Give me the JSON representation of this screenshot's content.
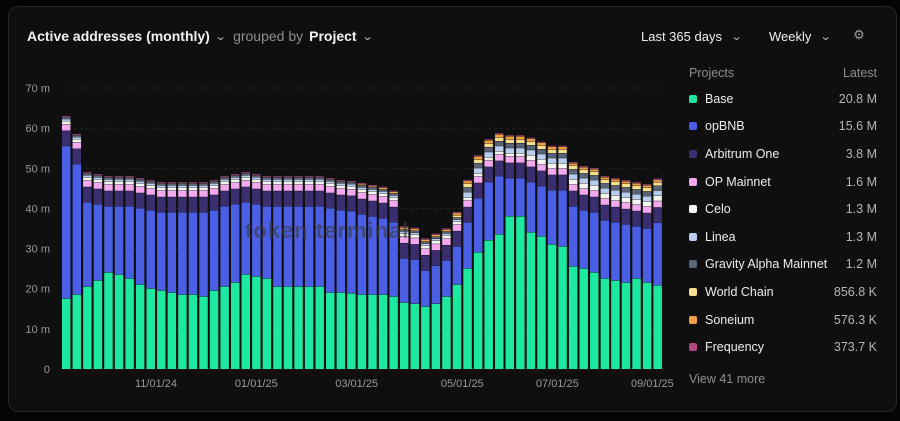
{
  "header": {
    "metric": "Active addresses (monthly)",
    "grouped_by": "grouped by",
    "group": "Project"
  },
  "controls": {
    "range": "Last 365 days",
    "interval": "Weekly"
  },
  "legend": {
    "title": "Projects",
    "latest_label": "Latest",
    "view_more": "View 41 more",
    "items": [
      {
        "name": "Base",
        "value": "20.8 M",
        "color": "#1de8a0"
      },
      {
        "name": "opBNB",
        "value": "15.6 M",
        "color": "#4a5ee6"
      },
      {
        "name": "Arbitrum One",
        "value": "3.8 M",
        "color": "#3a2e6e"
      },
      {
        "name": "OP Mainnet",
        "value": "1.6 M",
        "color": "#f4a8f0"
      },
      {
        "name": "Celo",
        "value": "1.3 M",
        "color": "#f5f5f0"
      },
      {
        "name": "Linea",
        "value": "1.3 M",
        "color": "#b8cdf0"
      },
      {
        "name": "Gravity Alpha Mainnet",
        "value": "1.2 M",
        "color": "#5a6478"
      },
      {
        "name": "World Chain",
        "value": "856.8 K",
        "color": "#f6df8c"
      },
      {
        "name": "Soneium",
        "value": "576.3 K",
        "color": "#f0a040"
      },
      {
        "name": "Frequency",
        "value": "373.7 K",
        "color": "#b04880"
      }
    ]
  },
  "watermark": "token terminal",
  "chart_data": {
    "type": "bar",
    "stacked": true,
    "ylim": [
      0,
      70
    ],
    "yticks": [
      "0",
      "10 m",
      "20 m",
      "30 m",
      "40 m",
      "50 m",
      "60 m",
      "70 m"
    ],
    "xtick_labels": [
      "11/01/24",
      "01/01/25",
      "03/01/25",
      "05/01/25",
      "07/01/25",
      "09/01/25"
    ],
    "xtick_positions": [
      8.5,
      18,
      27.5,
      37.5,
      46.5,
      55.5
    ],
    "series": [
      {
        "name": "Base",
        "values": [
          17.5,
          18.5,
          20.5,
          22,
          24,
          23.5,
          22.5,
          21,
          20,
          19.5,
          19,
          18.5,
          18.5,
          18,
          19.5,
          20.5,
          21.5,
          23.5,
          23,
          22.5,
          20.5,
          20.5,
          20.5,
          20.5,
          20.5,
          19,
          19,
          18.8,
          18.5,
          18.5,
          18.5,
          18,
          16.5,
          16.2,
          15.5,
          16.2,
          18,
          21,
          25,
          29,
          32,
          33.5,
          38,
          38,
          34,
          33,
          31,
          30.5,
          25.5,
          25,
          24,
          22.5,
          22,
          21.5,
          22.5,
          21.5,
          20.8
        ]
      },
      {
        "name": "opBNB",
        "values": [
          38,
          32.5,
          21,
          19,
          16.5,
          17,
          18,
          19,
          19.5,
          19.5,
          20,
          20.5,
          20.5,
          21,
          20,
          20,
          19.5,
          18,
          18,
          18,
          20,
          20,
          20,
          20,
          20,
          21,
          20.5,
          20.5,
          20,
          19.5,
          19,
          18.5,
          11,
          11,
          9,
          9.5,
          9,
          9.5,
          11.5,
          13.5,
          14.5,
          14.5,
          9.5,
          9.5,
          12.5,
          12.5,
          13.5,
          14,
          15,
          14.5,
          15,
          14.5,
          14.5,
          14.5,
          13,
          13.5,
          15.6
        ]
      },
      {
        "name": "Arbitrum One",
        "values": [
          3.8,
          3.8,
          3.8,
          3.8,
          3.8,
          3.8,
          3.8,
          3.8,
          3.8,
          3.8,
          3.8,
          3.8,
          3.8,
          3.8,
          3.8,
          3.8,
          3.8,
          3.8,
          3.8,
          3.8,
          3.8,
          3.8,
          3.8,
          3.8,
          3.8,
          3.8,
          3.8,
          3.8,
          3.8,
          3.8,
          3.8,
          3.8,
          3.8,
          3.8,
          3.8,
          3.8,
          3.8,
          3.8,
          3.8,
          3.8,
          3.8,
          3.8,
          3.8,
          3.8,
          3.8,
          3.8,
          3.8,
          3.8,
          3.8,
          3.8,
          3.8,
          3.8,
          3.8,
          3.8,
          3.8,
          3.8,
          3.8
        ]
      },
      {
        "name": "OP Mainnet",
        "values": [
          1.6,
          1.6,
          1.6,
          1.6,
          1.6,
          1.6,
          1.6,
          1.6,
          1.6,
          1.6,
          1.6,
          1.6,
          1.6,
          1.6,
          1.6,
          1.6,
          1.6,
          1.6,
          1.6,
          1.6,
          1.6,
          1.6,
          1.6,
          1.6,
          1.6,
          1.6,
          1.6,
          1.6,
          1.6,
          1.6,
          1.6,
          1.6,
          1.6,
          1.6,
          1.6,
          1.6,
          1.6,
          1.6,
          1.6,
          1.6,
          1.6,
          1.6,
          1.6,
          1.6,
          1.6,
          1.6,
          1.6,
          1.6,
          1.6,
          1.6,
          1.6,
          1.6,
          1.6,
          1.6,
          1.6,
          1.6,
          1.6
        ]
      },
      {
        "name": "Celo",
        "values": [
          0.8,
          0.8,
          0.8,
          0.8,
          0.8,
          0.8,
          0.8,
          0.8,
          0.8,
          0.8,
          0.8,
          0.8,
          0.8,
          0.8,
          0.8,
          0.8,
          0.8,
          0.8,
          0.8,
          0.8,
          0.8,
          0.8,
          0.8,
          0.8,
          0.8,
          0.8,
          0.8,
          0.8,
          0.8,
          0.8,
          0.8,
          0.8,
          0.8,
          0.8,
          0.8,
          0.8,
          0.8,
          0.8,
          0.8,
          0.8,
          0.8,
          0.8,
          0.8,
          0.8,
          1.3,
          1.3,
          1.3,
          1.3,
          1.3,
          1.3,
          1.3,
          1.3,
          1.3,
          1.3,
          1.3,
          1.3,
          1.3
        ]
      },
      {
        "name": "Linea",
        "values": [
          0.5,
          0.5,
          0.5,
          0.5,
          0.5,
          0.5,
          0.5,
          0.5,
          0.5,
          0.5,
          0.5,
          0.5,
          0.5,
          0.5,
          0.5,
          0.5,
          0.5,
          0.5,
          0.5,
          0.5,
          0.5,
          0.5,
          0.5,
          0.5,
          0.5,
          0.5,
          0.5,
          0.5,
          0.5,
          0.5,
          0.5,
          0.5,
          0.5,
          0.5,
          0.5,
          0.5,
          0.5,
          0.5,
          1.3,
          1.3,
          1.3,
          1.3,
          1.3,
          1.3,
          1.3,
          1.3,
          1.3,
          1.3,
          1.3,
          1.3,
          1.3,
          1.3,
          1.3,
          1.3,
          1.3,
          1.3,
          1.3
        ]
      },
      {
        "name": "Gravity Alpha Mainnet",
        "values": [
          0.5,
          0.5,
          0.5,
          0.5,
          0.5,
          0.5,
          0.5,
          0.5,
          0.5,
          0.5,
          0.5,
          0.5,
          0.5,
          0.5,
          0.5,
          0.5,
          0.5,
          0.5,
          0.5,
          0.5,
          0.5,
          0.5,
          0.5,
          0.5,
          0.5,
          0.5,
          0.5,
          0.5,
          0.5,
          0.5,
          0.5,
          0.5,
          0.5,
          0.5,
          0.5,
          0.5,
          0.5,
          0.5,
          1.2,
          1.2,
          1.2,
          1.2,
          1.2,
          1.2,
          1.2,
          1.2,
          1.2,
          1.2,
          1.2,
          1.2,
          1.2,
          1.2,
          1.2,
          1.2,
          1.2,
          1.2,
          1.2
        ]
      },
      {
        "name": "World Chain",
        "values": [
          0,
          0,
          0,
          0,
          0,
          0,
          0,
          0,
          0,
          0,
          0,
          0,
          0,
          0,
          0,
          0,
          0,
          0,
          0,
          0,
          0,
          0,
          0,
          0,
          0,
          0,
          0,
          0,
          0,
          0,
          0,
          0,
          0,
          0,
          0,
          0,
          0,
          0.5,
          0.9,
          0.9,
          0.9,
          0.9,
          0.9,
          0.9,
          0.9,
          0.9,
          0.9,
          0.9,
          0.9,
          0.9,
          0.9,
          0.9,
          0.9,
          0.9,
          0.9,
          0.9,
          0.86
        ]
      },
      {
        "name": "Soneium",
        "values": [
          0,
          0,
          0,
          0,
          0,
          0,
          0,
          0,
          0,
          0,
          0,
          0,
          0,
          0,
          0,
          0,
          0,
          0,
          0,
          0,
          0,
          0,
          0,
          0,
          0,
          0,
          0,
          0,
          0.3,
          0.3,
          0.4,
          0.4,
          0.5,
          0.5,
          0.5,
          0.5,
          0.5,
          0.6,
          0.7,
          0.8,
          0.8,
          0.8,
          0.8,
          0.8,
          0.7,
          0.7,
          0.7,
          0.7,
          0.6,
          0.6,
          0.6,
          0.6,
          0.6,
          0.6,
          0.6,
          0.6,
          0.58
        ]
      },
      {
        "name": "Frequency",
        "values": [
          0.3,
          0.3,
          0.3,
          0.3,
          0.3,
          0.3,
          0.3,
          0.3,
          0.3,
          0.3,
          0.3,
          0.3,
          0.3,
          0.3,
          0.3,
          0.3,
          0.3,
          0.3,
          0.3,
          0.3,
          0.3,
          0.3,
          0.3,
          0.3,
          0.3,
          0.3,
          0.3,
          0.3,
          0.3,
          0.3,
          0.3,
          0.3,
          0.3,
          0.3,
          0.3,
          0.3,
          0.3,
          0.3,
          0.3,
          0.3,
          0.3,
          0.3,
          0.3,
          0.3,
          0.3,
          0.3,
          0.3,
          0.3,
          0.3,
          0.3,
          0.3,
          0.3,
          0.3,
          0.3,
          0.3,
          0.3,
          0.37
        ]
      }
    ]
  }
}
